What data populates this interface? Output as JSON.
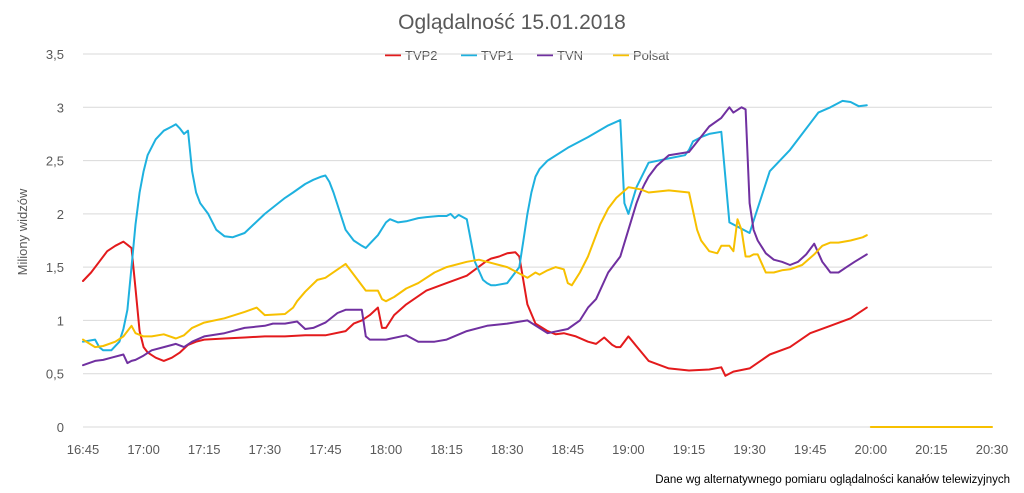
{
  "chart_data": {
    "type": "line",
    "title": "Oglądalność 15.01.2018",
    "ylabel": "Miliony widzów",
    "xlabel": "",
    "source_note": "Dane wg alternatywnego pomiaru oglądalności kanałów telewizyjnych",
    "ylim": [
      0,
      3.5
    ],
    "y_ticks": [
      0,
      0.5,
      1,
      1.5,
      2,
      2.5,
      3,
      3.5
    ],
    "y_tick_labels": [
      "0",
      "0,5",
      "1",
      "1,5",
      "2",
      "2,5",
      "3",
      "3,5"
    ],
    "x_range_minutes": [
      1005,
      1230
    ],
    "x_ticks": [
      1005,
      1020,
      1035,
      1050,
      1065,
      1080,
      1095,
      1110,
      1125,
      1140,
      1155,
      1170,
      1185,
      1200,
      1215,
      1230
    ],
    "x_tick_labels": [
      "16:45",
      "17:00",
      "17:15",
      "17:30",
      "17:45",
      "18:00",
      "18:15",
      "18:30",
      "18:45",
      "19:00",
      "19:15",
      "19:30",
      "19:45",
      "20:00",
      "20:15",
      "20:30"
    ],
    "legend_position": "top-center",
    "grid": true,
    "series": [
      {
        "name": "TVP2",
        "color": "#e31a1c",
        "x": [
          1005,
          1007,
          1009,
          1011,
          1013,
          1015,
          1017,
          1018,
          1019,
          1020,
          1021,
          1023,
          1025,
          1027,
          1029,
          1031,
          1033,
          1035,
          1040,
          1045,
          1050,
          1055,
          1060,
          1065,
          1070,
          1072,
          1074,
          1076,
          1078,
          1079,
          1080,
          1082,
          1085,
          1090,
          1095,
          1100,
          1105,
          1106,
          1108,
          1110,
          1112,
          1113,
          1115,
          1117,
          1120,
          1122,
          1124,
          1127,
          1130,
          1132,
          1134,
          1136,
          1137,
          1138,
          1140,
          1145,
          1150,
          1155,
          1160,
          1163,
          1164,
          1166,
          1170,
          1175,
          1180,
          1185,
          1190,
          1195,
          1199
        ],
        "y": [
          1.37,
          1.45,
          1.55,
          1.65,
          1.7,
          1.74,
          1.68,
          1.3,
          0.9,
          0.75,
          0.7,
          0.65,
          0.62,
          0.65,
          0.7,
          0.77,
          0.8,
          0.82,
          0.83,
          0.84,
          0.85,
          0.85,
          0.86,
          0.86,
          0.9,
          0.97,
          1.0,
          1.05,
          1.12,
          0.93,
          0.93,
          1.05,
          1.15,
          1.28,
          1.35,
          1.42,
          1.56,
          1.58,
          1.6,
          1.63,
          1.64,
          1.6,
          1.15,
          0.97,
          0.9,
          0.87,
          0.88,
          0.85,
          0.8,
          0.78,
          0.84,
          0.77,
          0.75,
          0.75,
          0.85,
          0.62,
          0.55,
          0.53,
          0.54,
          0.56,
          0.48,
          0.52,
          0.55,
          0.68,
          0.75,
          0.88,
          0.95,
          1.02,
          1.12
        ]
      },
      {
        "name": "TVP1",
        "color": "#1eb1df",
        "x": [
          1005,
          1008,
          1009,
          1010,
          1012,
          1014,
          1015,
          1016,
          1017,
          1018,
          1019,
          1020,
          1021,
          1023,
          1025,
          1027,
          1028,
          1029,
          1030,
          1031,
          1032,
          1033,
          1034,
          1036,
          1038,
          1040,
          1042,
          1045,
          1050,
          1055,
          1057,
          1060,
          1062,
          1064,
          1065,
          1066,
          1067,
          1070,
          1072,
          1074,
          1075,
          1076,
          1078,
          1080,
          1081,
          1083,
          1085,
          1088,
          1090,
          1093,
          1095,
          1096,
          1097,
          1098,
          1100,
          1102,
          1104,
          1105,
          1106,
          1107,
          1110,
          1113,
          1114,
          1115,
          1116,
          1117,
          1118,
          1120,
          1125,
          1130,
          1135,
          1138,
          1139,
          1140,
          1142,
          1145,
          1150,
          1154,
          1155,
          1156,
          1157,
          1158,
          1160,
          1163,
          1165,
          1170,
          1175,
          1180,
          1185,
          1187,
          1190,
          1193,
          1195,
          1197,
          1199
        ],
        "y": [
          0.8,
          0.82,
          0.75,
          0.72,
          0.72,
          0.8,
          0.92,
          1.1,
          1.5,
          1.9,
          2.2,
          2.4,
          2.55,
          2.7,
          2.78,
          2.82,
          2.84,
          2.8,
          2.75,
          2.78,
          2.4,
          2.2,
          2.1,
          2.0,
          1.85,
          1.79,
          1.78,
          1.82,
          2.0,
          2.15,
          2.2,
          2.28,
          2.32,
          2.35,
          2.36,
          2.3,
          2.2,
          1.85,
          1.75,
          1.7,
          1.68,
          1.72,
          1.8,
          1.92,
          1.95,
          1.92,
          1.93,
          1.96,
          1.97,
          1.98,
          1.98,
          2.0,
          1.96,
          1.99,
          1.95,
          1.55,
          1.38,
          1.35,
          1.33,
          1.33,
          1.35,
          1.5,
          1.75,
          2.0,
          2.2,
          2.35,
          2.42,
          2.5,
          2.62,
          2.72,
          2.83,
          2.88,
          2.1,
          2.0,
          2.25,
          2.48,
          2.52,
          2.55,
          2.6,
          2.68,
          2.7,
          2.72,
          2.75,
          2.77,
          1.92,
          1.82,
          2.4,
          2.6,
          2.85,
          2.95,
          3.0,
          3.06,
          3.05,
          3.01,
          3.02
        ]
      },
      {
        "name": "TVN",
        "color": "#7030a0",
        "x": [
          1005,
          1008,
          1010,
          1012,
          1015,
          1016,
          1017,
          1018,
          1020,
          1022,
          1025,
          1028,
          1030,
          1032,
          1035,
          1040,
          1045,
          1050,
          1052,
          1055,
          1058,
          1060,
          1062,
          1065,
          1068,
          1070,
          1072,
          1074,
          1075,
          1076,
          1078,
          1080,
          1085,
          1088,
          1090,
          1092,
          1095,
          1100,
          1105,
          1110,
          1115,
          1120,
          1125,
          1128,
          1130,
          1132,
          1135,
          1138,
          1140,
          1142,
          1143,
          1144,
          1145,
          1147,
          1150,
          1155,
          1160,
          1163,
          1165,
          1166,
          1168,
          1169,
          1170,
          1171,
          1172,
          1174,
          1176,
          1178,
          1180,
          1182,
          1184,
          1186,
          1188,
          1189,
          1190,
          1192,
          1194,
          1196,
          1199
        ],
        "y": [
          0.58,
          0.62,
          0.63,
          0.65,
          0.68,
          0.6,
          0.62,
          0.63,
          0.67,
          0.72,
          0.75,
          0.78,
          0.75,
          0.8,
          0.85,
          0.88,
          0.93,
          0.95,
          0.97,
          0.97,
          0.99,
          0.92,
          0.93,
          0.98,
          1.07,
          1.1,
          1.1,
          1.1,
          0.85,
          0.82,
          0.82,
          0.82,
          0.86,
          0.8,
          0.8,
          0.8,
          0.82,
          0.9,
          0.95,
          0.97,
          1.0,
          0.88,
          0.92,
          1.0,
          1.12,
          1.2,
          1.45,
          1.6,
          1.85,
          2.1,
          2.2,
          2.28,
          2.35,
          2.45,
          2.55,
          2.58,
          2.82,
          2.9,
          3.0,
          2.95,
          3.0,
          2.98,
          2.1,
          1.85,
          1.75,
          1.63,
          1.57,
          1.55,
          1.52,
          1.55,
          1.62,
          1.72,
          1.55,
          1.5,
          1.45,
          1.45,
          1.5,
          1.55,
          1.62
        ]
      },
      {
        "name": "Polsat",
        "color": "#f7c000",
        "x": [
          1005,
          1008,
          1010,
          1013,
          1015,
          1017,
          1018,
          1020,
          1022,
          1025,
          1028,
          1030,
          1032,
          1035,
          1040,
          1045,
          1048,
          1050,
          1055,
          1057,
          1058,
          1060,
          1063,
          1065,
          1070,
          1075,
          1078,
          1079,
          1080,
          1082,
          1085,
          1088,
          1092,
          1095,
          1100,
          1103,
          1105,
          1110,
          1115,
          1117,
          1118,
          1120,
          1122,
          1124,
          1125,
          1126,
          1128,
          1130,
          1133,
          1135,
          1137,
          1140,
          1143,
          1145,
          1150,
          1155,
          1157,
          1158,
          1160,
          1162,
          1163,
          1165,
          1166,
          1167,
          1168,
          1169,
          1170,
          1171,
          1172,
          1174,
          1176,
          1178,
          1180,
          1183,
          1186,
          1188,
          1190,
          1192,
          1195,
          1198,
          1199
        ],
        "y": [
          0.82,
          0.75,
          0.76,
          0.8,
          0.85,
          0.95,
          0.88,
          0.85,
          0.85,
          0.87,
          0.83,
          0.86,
          0.93,
          0.98,
          1.02,
          1.08,
          1.12,
          1.05,
          1.06,
          1.12,
          1.18,
          1.27,
          1.38,
          1.4,
          1.53,
          1.28,
          1.28,
          1.2,
          1.18,
          1.22,
          1.3,
          1.35,
          1.45,
          1.5,
          1.55,
          1.57,
          1.55,
          1.5,
          1.4,
          1.45,
          1.43,
          1.47,
          1.5,
          1.48,
          1.35,
          1.33,
          1.45,
          1.6,
          1.9,
          2.05,
          2.15,
          2.25,
          2.23,
          2.2,
          2.22,
          2.2,
          1.85,
          1.75,
          1.65,
          1.63,
          1.7,
          1.7,
          1.65,
          1.95,
          1.85,
          1.6,
          1.6,
          1.62,
          1.62,
          1.45,
          1.45,
          1.47,
          1.48,
          1.52,
          1.62,
          1.7,
          1.73,
          1.73,
          1.75,
          1.78,
          1.8
        ]
      },
      {
        "name": "",
        "color": "#f7c000",
        "x": [
          1200,
          1230
        ],
        "y": [
          0,
          0
        ]
      }
    ]
  }
}
